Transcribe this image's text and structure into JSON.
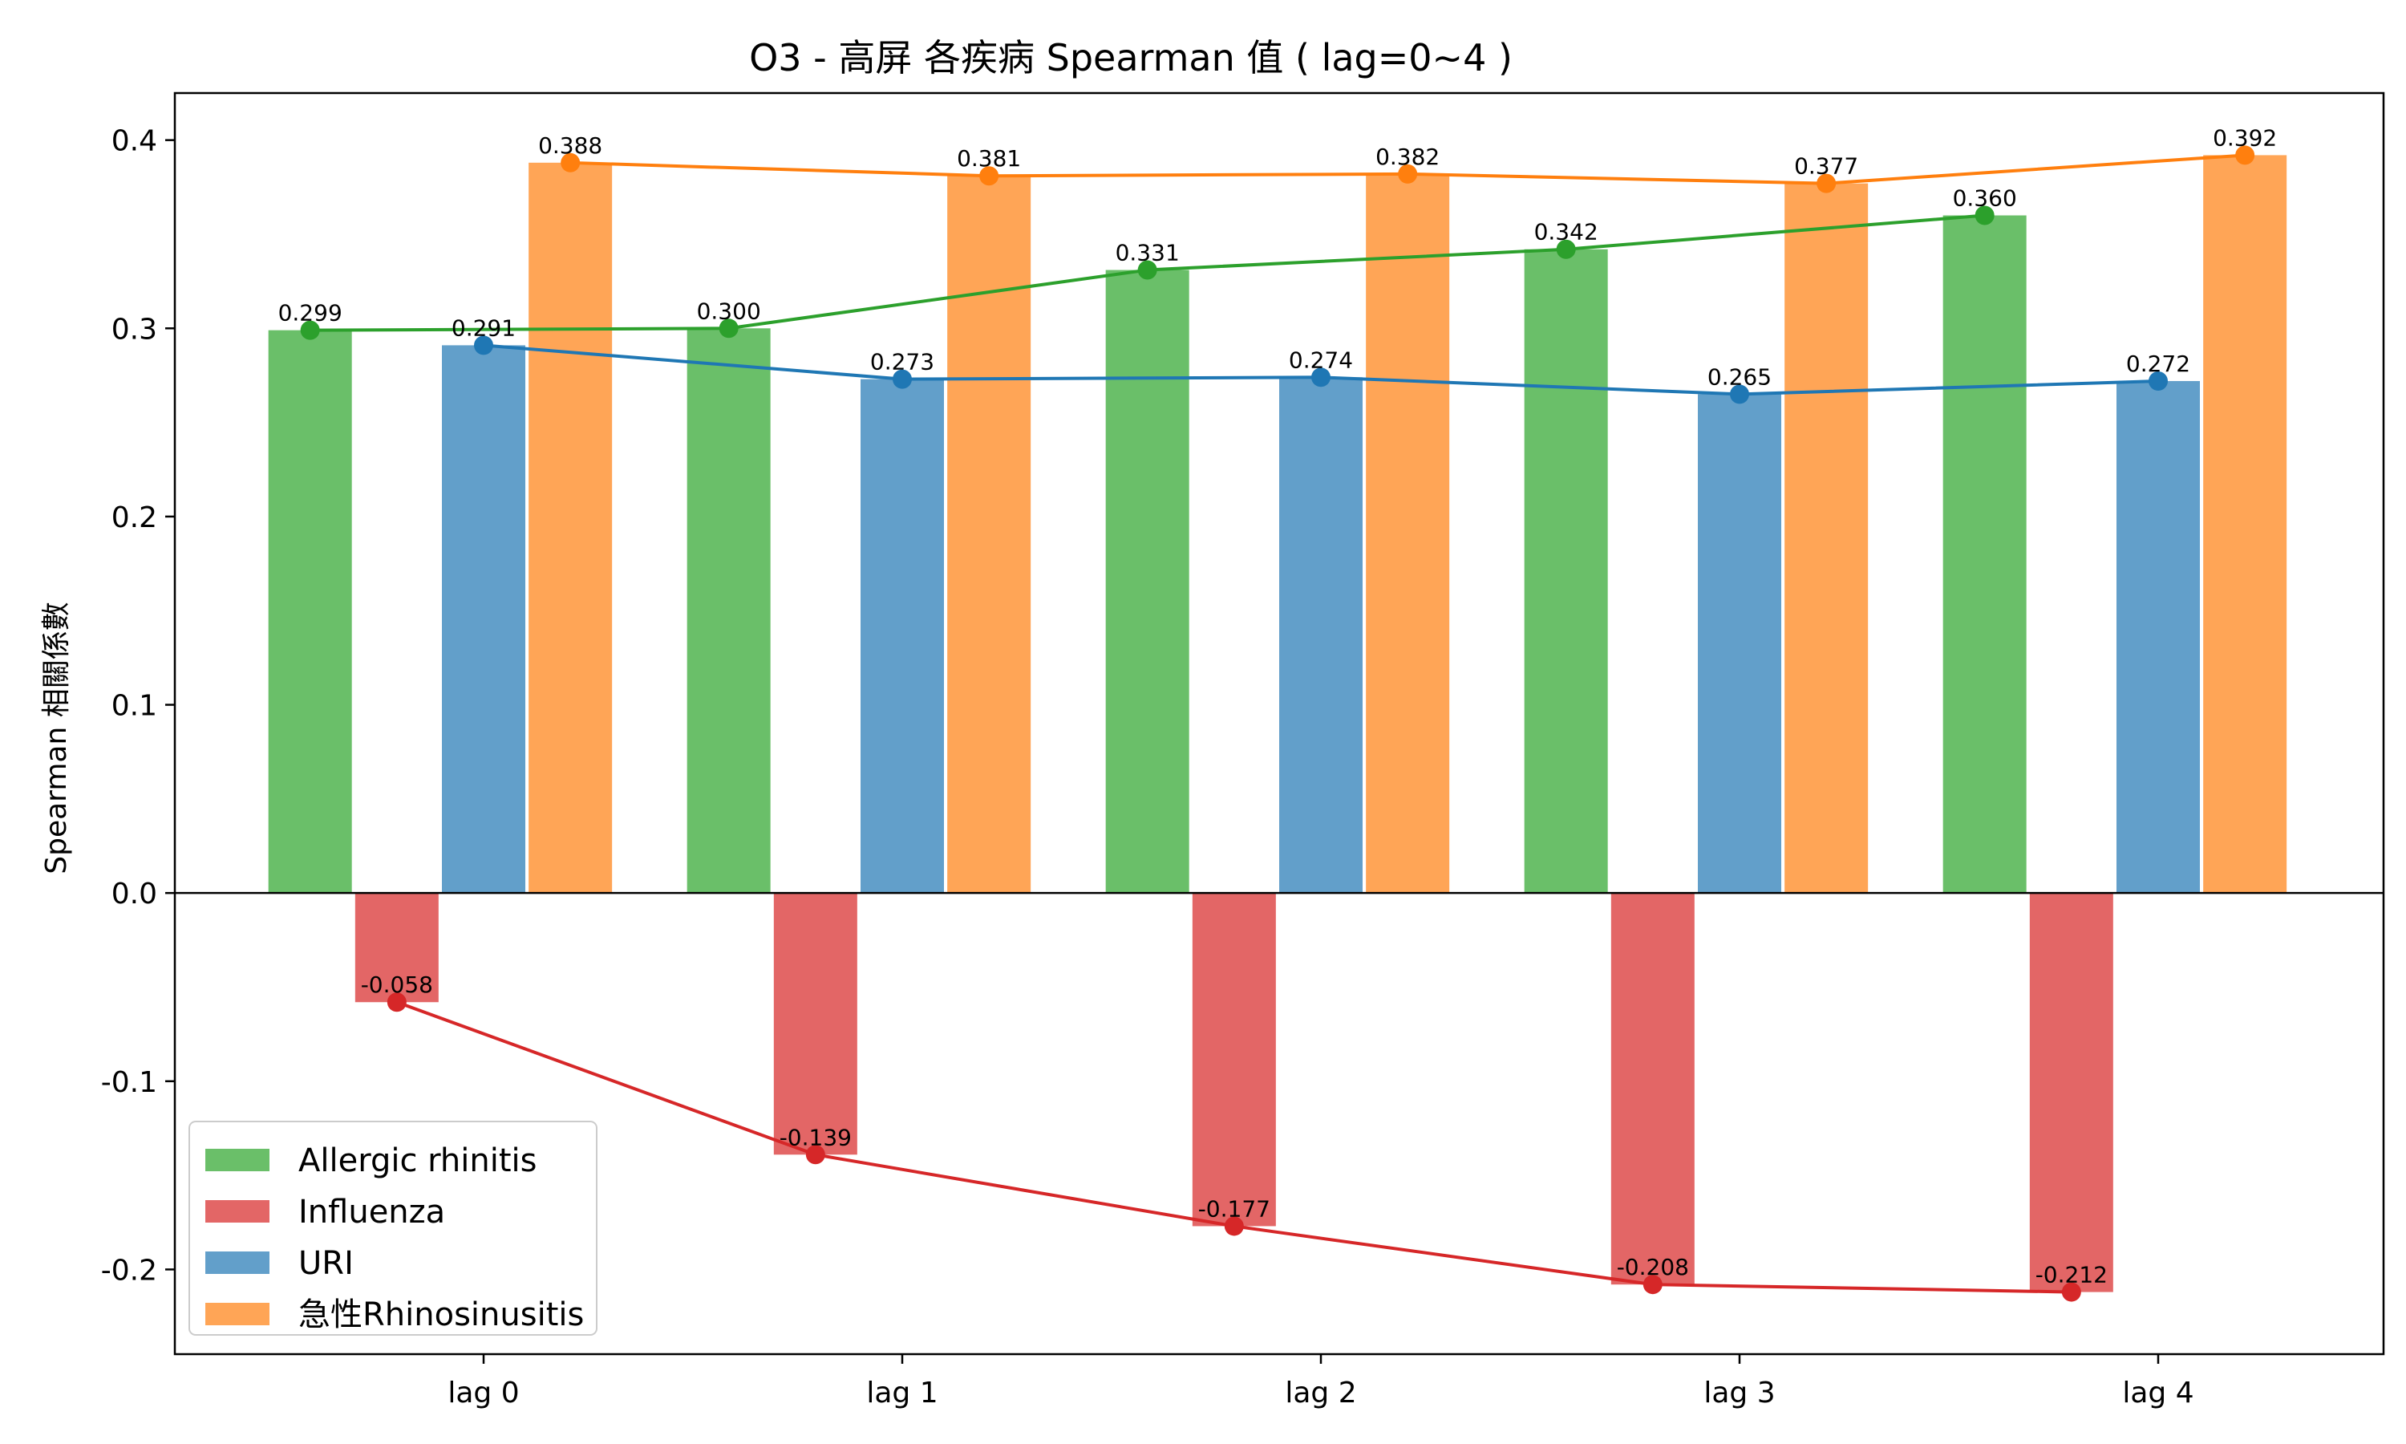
{
  "chart_data": {
    "type": "bar",
    "title": "O3 - 高屏 各疾病 Spearman 值 ( lag=0~4 )",
    "xlabel": "",
    "ylabel": "Spearman 相關係數",
    "categories": [
      "lag 0",
      "lag 1",
      "lag 2",
      "lag 3",
      "lag 4"
    ],
    "ylim": [
      -0.245,
      0.425
    ],
    "yticks": [
      -0.2,
      -0.1,
      0.0,
      0.1,
      0.2,
      0.3,
      0.4
    ],
    "ytick_labels": [
      "-0.2",
      "-0.1",
      "0.0",
      "0.1",
      "0.2",
      "0.3",
      "0.4"
    ],
    "grid": false,
    "legend_position": "lower-left",
    "series": [
      {
        "name": "Allergic rhinitis",
        "values": [
          0.299,
          0.3,
          0.331,
          0.342,
          0.36
        ],
        "labels": [
          "0.299",
          "0.300",
          "0.331",
          "0.342",
          "0.360"
        ],
        "bar_color": "#6abf69",
        "line_color": "#2ca02c"
      },
      {
        "name": "Influenza",
        "values": [
          -0.058,
          -0.139,
          -0.177,
          -0.208,
          -0.212
        ],
        "labels": [
          "-0.058",
          "-0.139",
          "-0.177",
          "-0.208",
          "-0.212"
        ],
        "bar_color": "#e36666",
        "line_color": "#d62728"
      },
      {
        "name": "URI",
        "values": [
          0.291,
          0.273,
          0.274,
          0.265,
          0.272
        ],
        "labels": [
          "0.291",
          "0.273",
          "0.274",
          "0.265",
          "0.272"
        ],
        "bar_color": "#629fca",
        "line_color": "#1f77b4"
      },
      {
        "name": "急性Rhinosinusitis",
        "values": [
          0.388,
          0.381,
          0.382,
          0.377,
          0.392
        ],
        "labels": [
          "0.388",
          "0.381",
          "0.382",
          "0.377",
          "0.392"
        ],
        "bar_color": "#ffa556",
        "line_color": "#ff7f0e"
      }
    ]
  }
}
